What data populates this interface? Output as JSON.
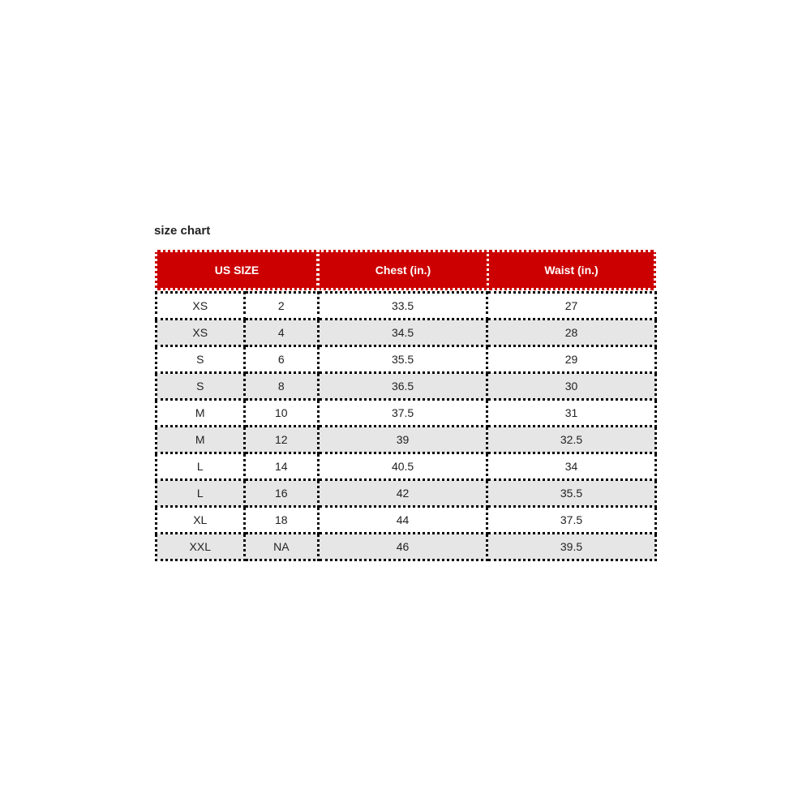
{
  "title": "size chart",
  "header": {
    "us_size": "US SIZE",
    "chest": "Chest (in.)",
    "waist": "Waist (in.)"
  },
  "colors": {
    "header_bg": "#cc0000",
    "alt_row": "#e6e6e6"
  },
  "rows": [
    {
      "letter": "XS",
      "num": "2",
      "chest": "33.5",
      "waist": "27"
    },
    {
      "letter": "XS",
      "num": "4",
      "chest": "34.5",
      "waist": "28"
    },
    {
      "letter": "S",
      "num": "6",
      "chest": "35.5",
      "waist": "29"
    },
    {
      "letter": "S",
      "num": "8",
      "chest": "36.5",
      "waist": "30"
    },
    {
      "letter": "M",
      "num": "10",
      "chest": "37.5",
      "waist": "31"
    },
    {
      "letter": "M",
      "num": "12",
      "chest": "39",
      "waist": "32.5"
    },
    {
      "letter": "L",
      "num": "14",
      "chest": "40.5",
      "waist": "34"
    },
    {
      "letter": "L",
      "num": "16",
      "chest": "42",
      "waist": "35.5"
    },
    {
      "letter": "XL",
      "num": "18",
      "chest": "44",
      "waist": "37.5"
    },
    {
      "letter": "XXL",
      "num": "NA",
      "chest": "46",
      "waist": "39.5"
    }
  ]
}
